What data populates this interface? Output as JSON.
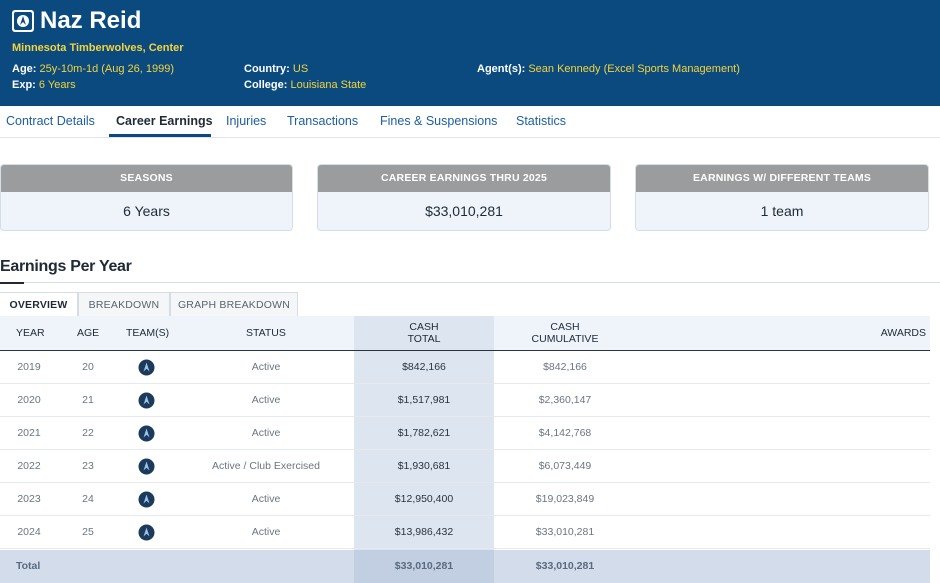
{
  "player": {
    "name": "Naz Reid",
    "team_position": "Minnesota Timberwolves, Center",
    "age_label": "Age:",
    "age_value": "25y-10m-1d (Aug 26, 1999)",
    "exp_label": "Exp:",
    "exp_value": "6 Years",
    "country_label": "Country:",
    "country_value": "US",
    "college_label": "College:",
    "college_value": "Louisiana State",
    "agent_label": "Agent(s):",
    "agent_value": "Sean Kennedy (Excel Sports Management)"
  },
  "nav": {
    "tabs": [
      "Contract Details",
      "Career Earnings",
      "Injuries",
      "Transactions",
      "Fines & Suspensions",
      "Statistics"
    ],
    "active": "Career Earnings"
  },
  "cards": [
    {
      "title": "SEASONS",
      "value": "6 Years"
    },
    {
      "title": "CAREER EARNINGS THRU 2025",
      "value": "$33,010,281"
    },
    {
      "title": "EARNINGS W/ DIFFERENT TEAMS",
      "value": "1 team"
    }
  ],
  "section": {
    "title": "Earnings Per Year",
    "subtabs": [
      "OVERVIEW",
      "BREAKDOWN",
      "GRAPH BREAKDOWN"
    ]
  },
  "table": {
    "headers": {
      "year": "YEAR",
      "age": "AGE",
      "teams": "TEAM(S)",
      "status": "STATUS",
      "cash_total_1": "CASH",
      "cash_total_2": "TOTAL",
      "cash_cum_1": "CASH",
      "cash_cum_2": "CUMULATIVE",
      "awards": "AWARDS"
    },
    "rows": [
      {
        "year": "2019",
        "age": "20",
        "status": "Active",
        "cash_total": "$842,166",
        "cash_cumulative": "$842,166"
      },
      {
        "year": "2020",
        "age": "21",
        "status": "Active",
        "cash_total": "$1,517,981",
        "cash_cumulative": "$2,360,147"
      },
      {
        "year": "2021",
        "age": "22",
        "status": "Active",
        "cash_total": "$1,782,621",
        "cash_cumulative": "$4,142,768"
      },
      {
        "year": "2022",
        "age": "23",
        "status": "Active / Club Exercised",
        "cash_total": "$1,930,681",
        "cash_cumulative": "$6,073,449"
      },
      {
        "year": "2023",
        "age": "24",
        "status": "Active",
        "cash_total": "$12,950,400",
        "cash_cumulative": "$19,023,849"
      },
      {
        "year": "2024",
        "age": "25",
        "status": "Active",
        "cash_total": "$13,986,432",
        "cash_cumulative": "$33,010,281"
      }
    ],
    "total": {
      "label": "Total",
      "cash_total": "$33,010,281",
      "cash_cumulative": "$33,010,281"
    }
  },
  "icons": {
    "logo": "timberwolves-logo-icon",
    "team": "timberwolves-team-icon"
  },
  "colors": {
    "header_bg": "#0b4a7f",
    "accent_yellow": "#f5d33a",
    "link_blue": "#1d5ea3"
  }
}
